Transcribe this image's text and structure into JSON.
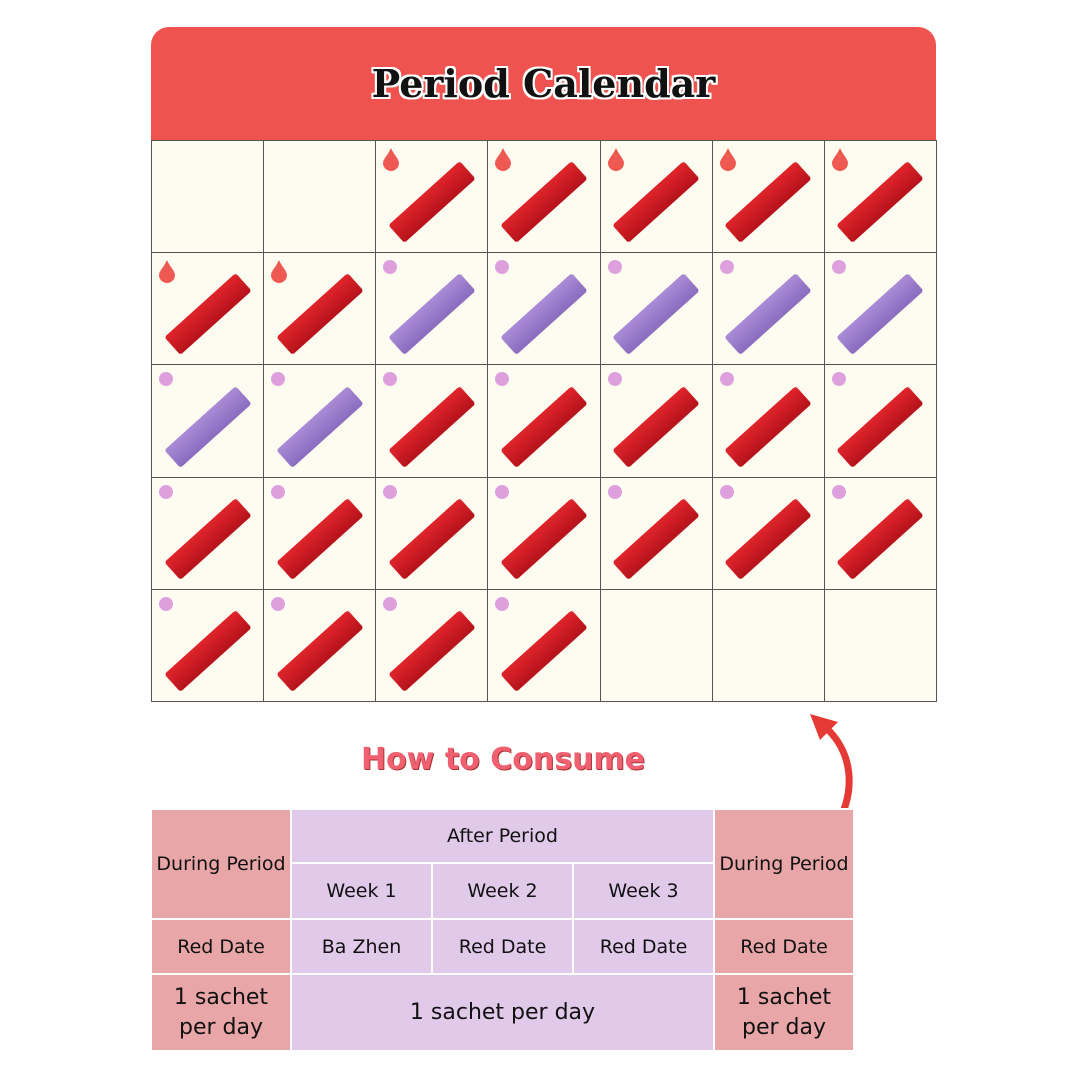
{
  "header": {
    "title": "Period Calendar"
  },
  "colors": {
    "header": "#EF5350",
    "red_sachet": "#D21C24",
    "purple_sachet": "#9B7CCB",
    "marker_dot": "#DDA0DD",
    "drop": "#EE5A52"
  },
  "calendar": {
    "rows": [
      [
        {
          "marker": "none",
          "sachet": "none"
        },
        {
          "marker": "none",
          "sachet": "none"
        },
        {
          "marker": "drop",
          "sachet": "red"
        },
        {
          "marker": "drop",
          "sachet": "red"
        },
        {
          "marker": "drop",
          "sachet": "red"
        },
        {
          "marker": "drop",
          "sachet": "red"
        },
        {
          "marker": "drop",
          "sachet": "red"
        }
      ],
      [
        {
          "marker": "drop",
          "sachet": "red"
        },
        {
          "marker": "drop",
          "sachet": "red"
        },
        {
          "marker": "dot",
          "sachet": "purple"
        },
        {
          "marker": "dot",
          "sachet": "purple"
        },
        {
          "marker": "dot",
          "sachet": "purple"
        },
        {
          "marker": "dot",
          "sachet": "purple"
        },
        {
          "marker": "dot",
          "sachet": "purple"
        }
      ],
      [
        {
          "marker": "dot",
          "sachet": "purple"
        },
        {
          "marker": "dot",
          "sachet": "purple"
        },
        {
          "marker": "dot",
          "sachet": "red"
        },
        {
          "marker": "dot",
          "sachet": "red"
        },
        {
          "marker": "dot",
          "sachet": "red"
        },
        {
          "marker": "dot",
          "sachet": "red"
        },
        {
          "marker": "dot",
          "sachet": "red"
        }
      ],
      [
        {
          "marker": "dot",
          "sachet": "red"
        },
        {
          "marker": "dot",
          "sachet": "red"
        },
        {
          "marker": "dot",
          "sachet": "red"
        },
        {
          "marker": "dot",
          "sachet": "red"
        },
        {
          "marker": "dot",
          "sachet": "red"
        },
        {
          "marker": "dot",
          "sachet": "red"
        },
        {
          "marker": "dot",
          "sachet": "red"
        }
      ],
      [
        {
          "marker": "dot",
          "sachet": "red"
        },
        {
          "marker": "dot",
          "sachet": "red"
        },
        {
          "marker": "dot",
          "sachet": "red"
        },
        {
          "marker": "dot",
          "sachet": "red"
        },
        {
          "marker": "none",
          "sachet": "none"
        },
        {
          "marker": "none",
          "sachet": "none"
        },
        {
          "marker": "none",
          "sachet": "none"
        }
      ]
    ]
  },
  "howto": {
    "title": "How to Consume",
    "during_period": "During Period",
    "after_period": "After Period",
    "weeks": [
      "Week 1",
      "Week 2",
      "Week 3"
    ],
    "products": {
      "during_1": "Red Date",
      "week1": "Ba Zhen",
      "week2": "Red Date",
      "week3": "Red Date",
      "during_2": "Red Date"
    },
    "dosage": {
      "during_1": "1 sachet per day",
      "after": "1 sachet per day",
      "during_2": "1 sachet per day"
    }
  }
}
